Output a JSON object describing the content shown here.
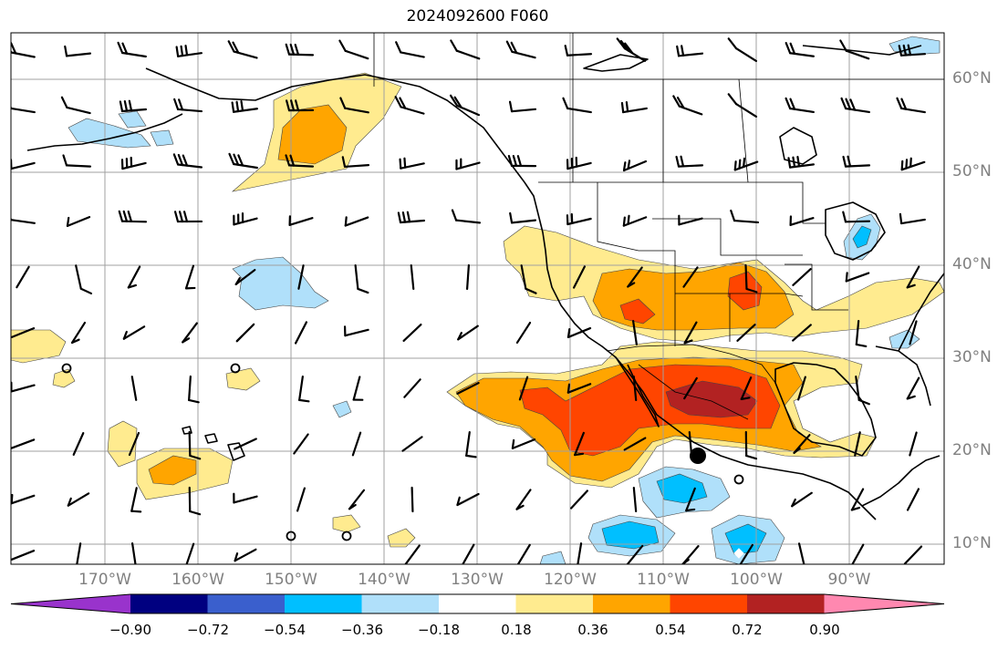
{
  "title": "2024092600 F060",
  "map": {
    "lat_labels": [
      "60°N",
      "50°N",
      "40°N",
      "30°N",
      "20°N",
      "10°N"
    ],
    "lon_labels": [
      "170°W",
      "160°W",
      "150°W",
      "140°W",
      "130°W",
      "120°W",
      "110°W",
      "100°W",
      "90°W"
    ],
    "colors": {
      "purple": "#9933cc",
      "navy": "#000080",
      "blue": "#3a5fcd",
      "cyan": "#00bfff",
      "lightblue": "#b0e0fa",
      "yellow": "#ffeb8f",
      "orange": "#ffa500",
      "redorange": "#ff4500",
      "darkred": "#b22222",
      "pink": "#ff88b0",
      "grid": "#a0a0a0",
      "coast": "#000000"
    }
  },
  "colorbar": {
    "ticks": [
      "−0.90",
      "−0.72",
      "−0.54",
      "−0.36",
      "−0.18",
      "0.18",
      "0.36",
      "0.54",
      "0.72",
      "0.90"
    ],
    "segment_colors": [
      "#000080",
      "#3a5fcd",
      "#00bfff",
      "#b0e0fa",
      "#ffffff",
      "#ffeb8f",
      "#ffa500",
      "#ff4500",
      "#b22222"
    ],
    "under_color": "#9933cc",
    "over_color": "#ff88b0"
  }
}
